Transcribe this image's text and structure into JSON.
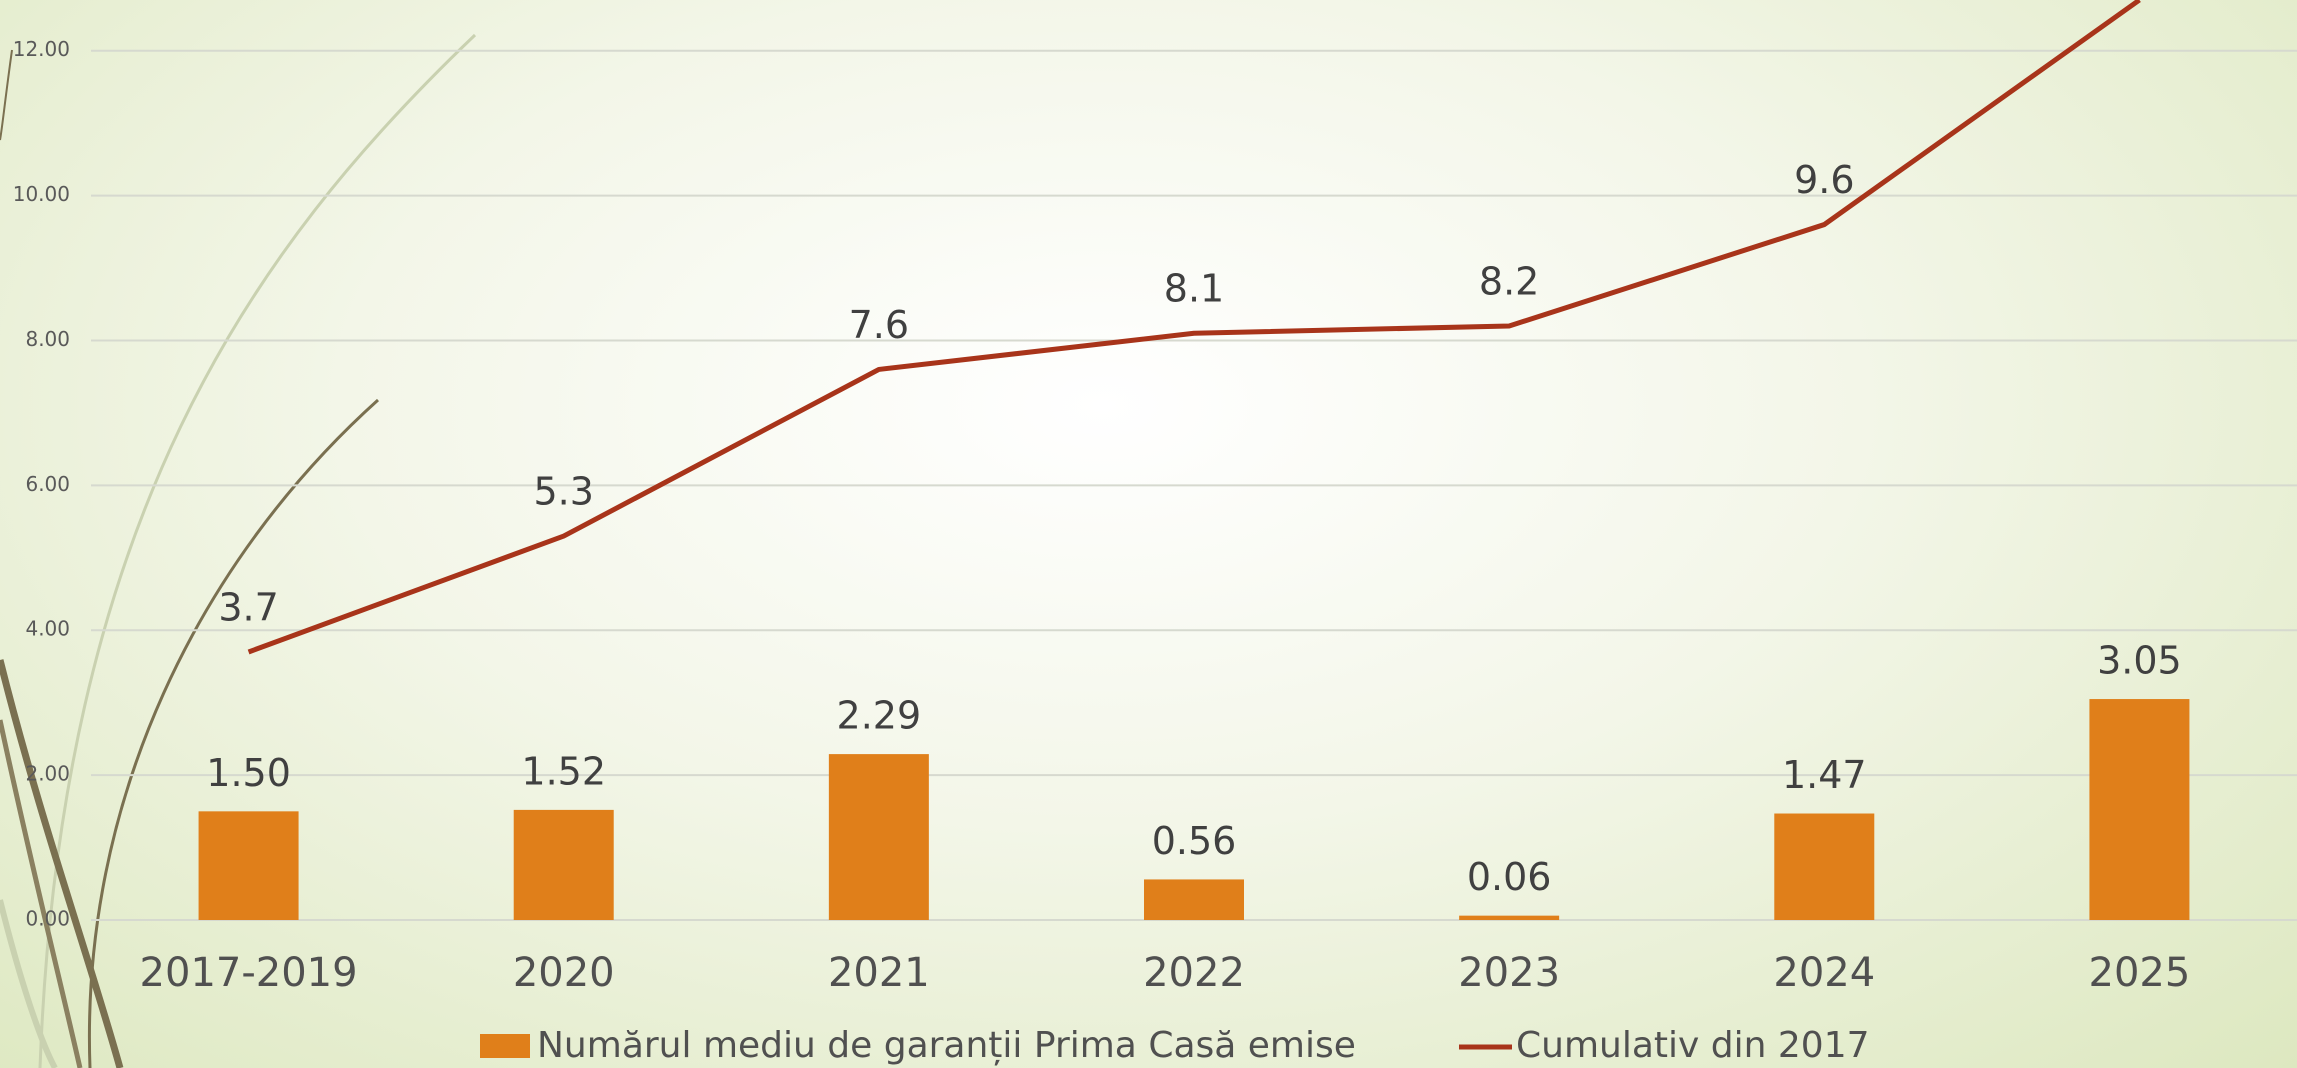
{
  "chart_data": {
    "type": "bar_line",
    "categories": [
      "2017-2019",
      "2020",
      "2021",
      "2022",
      "2023",
      "2024",
      "2025"
    ],
    "series": [
      {
        "name": "Numărul mediu de garanții  Prima Casă emise",
        "type": "bar",
        "color": "#e07f1a",
        "values": [
          1.5,
          1.52,
          2.29,
          0.56,
          0.06,
          1.47,
          3.05
        ],
        "value_labels": [
          "1.50",
          "1.52",
          "2.29",
          "0.56",
          "0.06",
          "1.47",
          "3.05"
        ]
      },
      {
        "name": "Cumulativ din 2017",
        "type": "line",
        "color": "#a8341a",
        "values": [
          3.7,
          5.3,
          7.6,
          8.1,
          8.2,
          9.6,
          12.7
        ]
      }
    ],
    "ylim": [
      0,
      12.7
    ],
    "yticks": [
      {
        "value": 0,
        "label": "0.00"
      },
      {
        "value": 2,
        "label": "2.00"
      },
      {
        "value": 4,
        "label": "4.00"
      },
      {
        "value": 6,
        "label": "6.00"
      },
      {
        "value": 8,
        "label": "8.00"
      },
      {
        "value": 10,
        "label": "10.00"
      },
      {
        "value": 12,
        "label": "12.00"
      }
    ],
    "grid": true,
    "legend": "bottom"
  }
}
